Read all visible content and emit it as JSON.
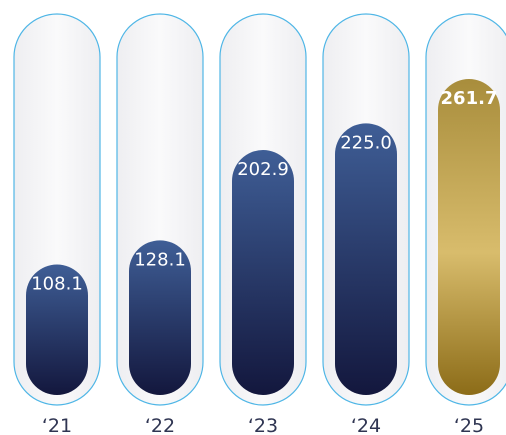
{
  "chart_data": {
    "type": "bar",
    "categories": [
      "‘21",
      "‘22",
      "‘23",
      "‘24",
      "‘25"
    ],
    "values": [
      108.1,
      128.1,
      202.9,
      225.0,
      261.7
    ],
    "value_labels": [
      "108.1",
      "128.1",
      "202.9",
      "225.0",
      "261.7"
    ],
    "highlight_index": 4,
    "ylim": [
      0,
      261.7
    ],
    "grid": false,
    "colors": {
      "track_outline": "#4fb6e6",
      "track_fill": "#f4f4f6",
      "bar_top": "#3f5e96",
      "bar_bottom": "#13173d",
      "highlight_top": "#a88d3c",
      "highlight_mid": "#d8bc6c",
      "highlight_bottom": "#8c6c18",
      "tick_text": "#2f3552",
      "label_text": "#ffffff"
    }
  }
}
